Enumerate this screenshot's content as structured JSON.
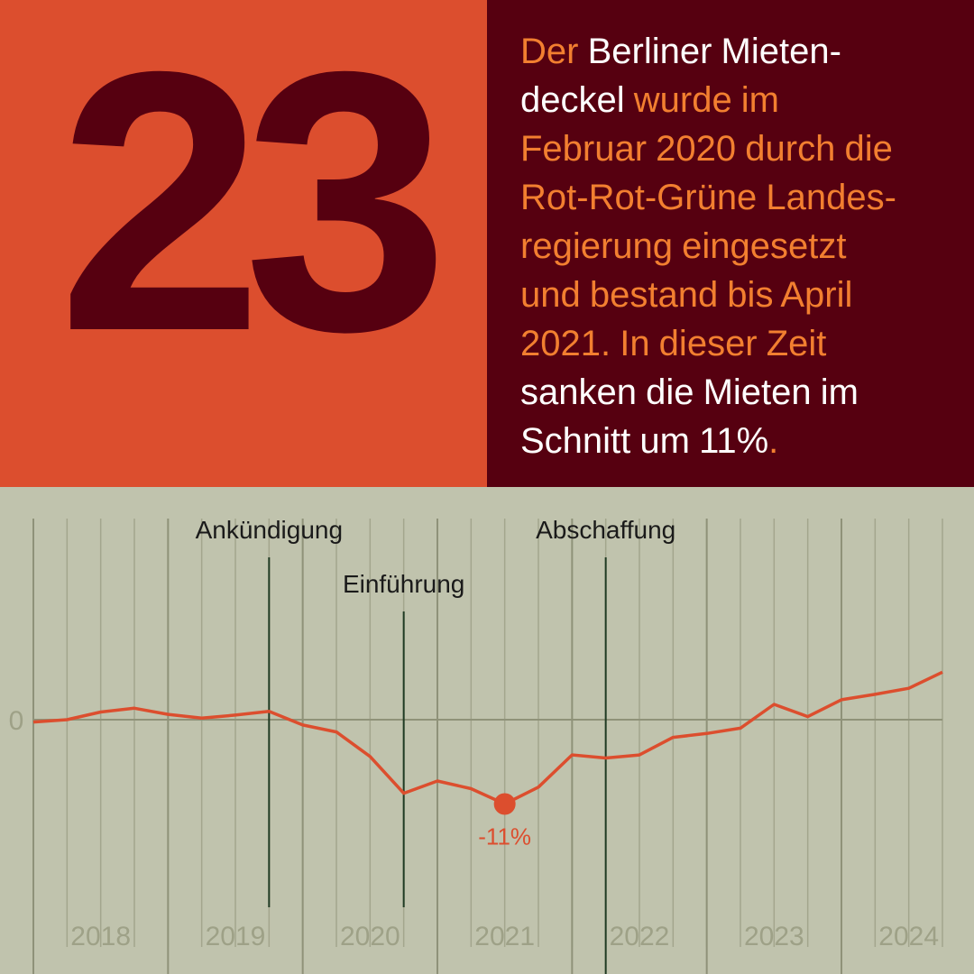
{
  "big_number": "23",
  "headline": [
    {
      "text": "Der ",
      "accent": true
    },
    {
      "text": "Berliner Mieten-",
      "accent": false
    },
    {
      "br": true
    },
    {
      "text": "deckel",
      "accent": false
    },
    {
      "text": " wurde im",
      "accent": true
    },
    {
      "br": true
    },
    {
      "text": "Februar 2020 durch die",
      "accent": true
    },
    {
      "br": true
    },
    {
      "text": "Rot-Rot-Grüne Landes-",
      "accent": true
    },
    {
      "br": true
    },
    {
      "text": "regierung eingesetzt",
      "accent": true
    },
    {
      "br": true
    },
    {
      "text": "und bestand bis April",
      "accent": true
    },
    {
      "br": true
    },
    {
      "text": "2021. In dieser Zeit",
      "accent": true
    },
    {
      "br": true
    },
    {
      "text": "sanken die Mieten im",
      "accent": false
    },
    {
      "br": true
    },
    {
      "text": "Schnitt um 11%",
      "accent": false
    },
    {
      "text": ".",
      "accent": true
    }
  ],
  "colors": {
    "orange": "#dc4e2e",
    "dark_red": "#560010",
    "accent_text": "#f27f30",
    "chart_bg": "#c0c3ad",
    "grid": "#a3a68d",
    "event_line": "#1f3a22"
  },
  "chart_data": {
    "type": "line",
    "title": "",
    "xlabel": "",
    "ylabel": "",
    "x_tick_labels": [
      "2018",
      "2019",
      "2020",
      "2021",
      "2022",
      "2023",
      "2024"
    ],
    "y_tick_labels": [
      "0"
    ],
    "xlim": [
      2017.5,
      2024.25
    ],
    "ylim": [
      -21,
      12
    ],
    "grid": "vertical, quarterly",
    "series": [
      {
        "name": "",
        "x": [
          2017.5,
          2017.75,
          2018.0,
          2018.25,
          2018.5,
          2018.75,
          2019.0,
          2019.25,
          2019.5,
          2019.75,
          2020.0,
          2020.25,
          2020.5,
          2020.75,
          2021.0,
          2021.25,
          2021.5,
          2021.75,
          2022.0,
          2022.25,
          2022.5,
          2022.75,
          2023.0,
          2023.25,
          2023.5,
          2023.75,
          2024.0,
          2024.25
        ],
        "values": [
          -0.3,
          0,
          1.0,
          1.5,
          0.7,
          0.2,
          0.6,
          1.1,
          -0.7,
          -1.6,
          -4.8,
          -9.6,
          -8.0,
          -9.0,
          -11.0,
          -8.8,
          -4.6,
          -5.0,
          -4.6,
          -2.3,
          -1.8,
          -1.1,
          2.0,
          0.4,
          2.6,
          3.3,
          4.1,
          6.2
        ]
      }
    ],
    "events": [
      {
        "label": "Ankündigung",
        "x": 2019.25
      },
      {
        "label": "Einführung",
        "x": 2020.25
      },
      {
        "label": "Abschaffung",
        "x": 2021.75
      }
    ],
    "annotation": {
      "label": "-11%",
      "x": 2021.0,
      "y": -11.0
    }
  }
}
